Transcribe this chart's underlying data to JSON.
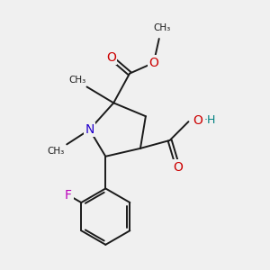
{
  "bg_color": "#f0f0f0",
  "bond_color": "#1a1a1a",
  "N_color": "#2200cc",
  "O_color": "#cc0000",
  "F_color": "#bb00bb",
  "H_color": "#008080",
  "bond_width": 1.4,
  "font_size": 9.5,
  "xlim": [
    0,
    10
  ],
  "ylim": [
    0,
    10
  ]
}
